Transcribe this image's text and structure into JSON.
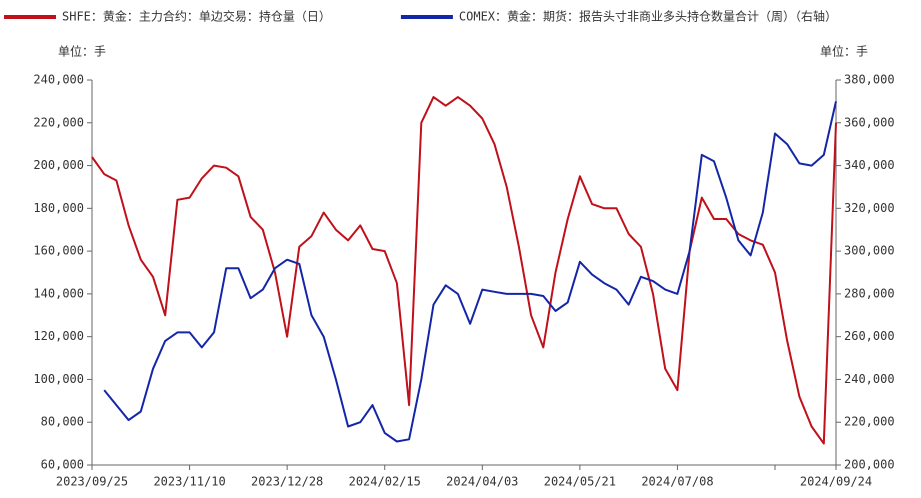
{
  "chart_data": {
    "type": "line",
    "units_left": "单位：手",
    "units_right": "单位：手",
    "categories": [
      "2023/09/25",
      null,
      null,
      null,
      null,
      null,
      null,
      null,
      "2023/11/10",
      null,
      null,
      null,
      null,
      null,
      null,
      null,
      "2023/12/28",
      null,
      null,
      null,
      null,
      null,
      null,
      null,
      "2024/02/15",
      null,
      null,
      null,
      null,
      null,
      null,
      null,
      "2024/04/03",
      null,
      null,
      null,
      null,
      null,
      null,
      null,
      "2024/05/21",
      null,
      null,
      null,
      null,
      null,
      null,
      null,
      "2024/07/08",
      null,
      null,
      null,
      null,
      null,
      null,
      null,
      null,
      null,
      null,
      null,
      null,
      "2024/09/24"
    ],
    "series": [
      {
        "name": "SHFE：黄金：主力合约：单边交易：持仓量（日）",
        "color": "#c0101a",
        "values": [
          204000,
          196000,
          193000,
          172000,
          156000,
          148000,
          130000,
          184000,
          185000,
          194000,
          200000,
          199000,
          195000,
          176000,
          170000,
          150000,
          120000,
          162000,
          167000,
          178000,
          170000,
          165000,
          172000,
          161000,
          160000,
          145000,
          88000,
          220000,
          232000,
          228000,
          232000,
          228000,
          222000,
          210000,
          190000,
          162000,
          130000,
          115000,
          150000,
          175000,
          195000,
          182000,
          180000,
          180000,
          168000,
          162000,
          140000,
          105000,
          95000,
          160000,
          185000,
          175000,
          175000,
          168000,
          165000,
          163000,
          150000,
          118000,
          92000,
          78000,
          70000,
          220000
        ]
      },
      {
        "name": "COMEX：黄金：期货：报告头寸非商业多头持仓数量合计（周）（右轴）",
        "color": "#1426a8",
        "axis": "y2",
        "values": [
          null,
          235000,
          228000,
          221000,
          225000,
          245000,
          258000,
          262000,
          262000,
          255000,
          262000,
          292000,
          292000,
          278000,
          282000,
          292000,
          296000,
          294000,
          270000,
          260000,
          240000,
          218000,
          220000,
          228000,
          215000,
          211000,
          212000,
          240000,
          275000,
          284000,
          280000,
          266000,
          282000,
          281000,
          280000,
          280000,
          280000,
          279000,
          272000,
          276000,
          295000,
          289000,
          285000,
          282000,
          275000,
          288000,
          286000,
          282000,
          280000,
          300000,
          345000,
          342000,
          325000,
          305000,
          298000,
          318000,
          355000,
          350000,
          341000,
          340000,
          345000,
          370000
        ]
      }
    ],
    "ylim": [
      60000,
      240000
    ],
    "yticks": [
      {
        "value": 60000,
        "label": "60,000"
      },
      {
        "value": 80000,
        "label": "80,000"
      },
      {
        "value": 100000,
        "label": "100,000"
      },
      {
        "value": 120000,
        "label": "120,000"
      },
      {
        "value": 140000,
        "label": "140,000"
      },
      {
        "value": 160000,
        "label": "160,000"
      },
      {
        "value": 180000,
        "label": "180,000"
      },
      {
        "value": 200000,
        "label": "200,000"
      },
      {
        "value": 220000,
        "label": "220,000"
      },
      {
        "value": 240000,
        "label": "240,000"
      }
    ],
    "y2lim": [
      200000,
      380000
    ],
    "y2ticks": [
      {
        "value": 200000,
        "label": "200,000"
      },
      {
        "value": 220000,
        "label": "220,000"
      },
      {
        "value": 240000,
        "label": "240,000"
      },
      {
        "value": 260000,
        "label": "260,000"
      },
      {
        "value": 280000,
        "label": "280,000"
      },
      {
        "value": 300000,
        "label": "300,000"
      },
      {
        "value": 320000,
        "label": "320,000"
      },
      {
        "value": 340000,
        "label": "340,000"
      },
      {
        "value": 360000,
        "label": "360,000"
      },
      {
        "value": 380000,
        "label": "380,000"
      }
    ]
  }
}
